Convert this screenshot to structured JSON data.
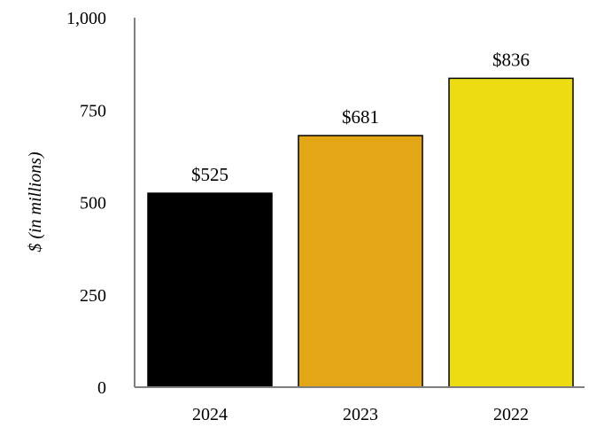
{
  "chart_data": {
    "type": "bar",
    "categories": [
      "2024",
      "2023",
      "2022"
    ],
    "values": [
      525,
      681,
      836
    ],
    "data_labels": [
      "$525",
      "$681",
      "$836"
    ],
    "title": "",
    "xlabel": "",
    "ylabel": "$ (in millions)",
    "ylim": [
      0,
      1000
    ],
    "yticks": [
      0,
      250,
      500,
      750,
      1000
    ],
    "ytick_labels": [
      "0",
      "250",
      "500",
      "750",
      "1,000"
    ],
    "grid": false,
    "legend": "none",
    "bar_colors": [
      "#000000",
      "#E3A614",
      "#EEDC12"
    ],
    "axis_color": "#7f7f7f"
  }
}
